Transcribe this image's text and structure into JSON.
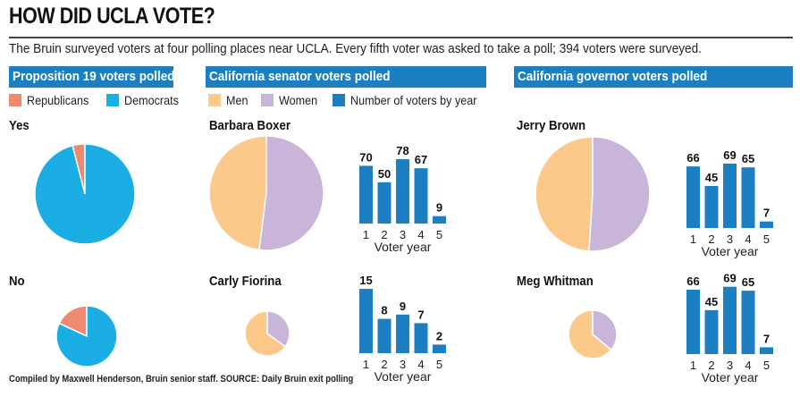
{
  "header": {
    "title": "HOW DID UCLA VOTE?",
    "subtitle": "The Bruin surveyed voters at four polling places near UCLA. Every fifth voter was asked to take a poll; 394 voters were surveyed."
  },
  "sections": {
    "prop19": "Proposition 19 voters polled",
    "senator": "California senator voters polled",
    "governor": "California governor voters polled"
  },
  "legend": {
    "republicans": "Republicans",
    "democrats": "Democrats",
    "men": "Men",
    "women": "Women",
    "voters_by_year": "Number of voters by year"
  },
  "colors": {
    "republicans": "#f08a6e",
    "democrats": "#1aaee5",
    "men": "#fcc98a",
    "women": "#c9b4da",
    "bars": "#1b7fc1",
    "section_bar": "#1b7fc1"
  },
  "labels": {
    "yes": "Yes",
    "no": "No",
    "boxer": "Barbara Boxer",
    "fiorina": "Carly Fiorina",
    "brown": "Jerry Brown",
    "whitman": "Meg Whitman"
  },
  "footer": "Compiled by Maxwell Henderson, Bruin senior staff. SOURCE: Daily Bruin exit polling",
  "chart_data": [
    {
      "id": "prop19-yes",
      "type": "pie",
      "title": "Yes",
      "labels": [
        "Republicans",
        "Democrats"
      ],
      "values": [
        4,
        96
      ]
    },
    {
      "id": "prop19-no",
      "type": "pie",
      "title": "No",
      "labels": [
        "Republicans",
        "Democrats"
      ],
      "values": [
        18,
        82
      ]
    },
    {
      "id": "boxer-gender",
      "type": "pie",
      "title": "Barbara Boxer",
      "labels": [
        "Men",
        "Women"
      ],
      "values": [
        48,
        52
      ]
    },
    {
      "id": "fiorina-gender",
      "type": "pie",
      "title": "Carly Fiorina",
      "labels": [
        "Men",
        "Women"
      ],
      "values": [
        65,
        35
      ]
    },
    {
      "id": "brown-gender",
      "type": "pie",
      "title": "Jerry Brown",
      "labels": [
        "Men",
        "Women"
      ],
      "values": [
        49,
        51
      ]
    },
    {
      "id": "whitman-gender",
      "type": "pie",
      "title": "Meg Whitman",
      "labels": [
        "Men",
        "Women"
      ],
      "values": [
        64,
        36
      ]
    },
    {
      "id": "boxer-years",
      "type": "bar",
      "title": "Barbara Boxer",
      "xlabel": "Voter year",
      "categories": [
        "1",
        "2",
        "3",
        "4",
        "5"
      ],
      "values": [
        70,
        50,
        78,
        67,
        9
      ]
    },
    {
      "id": "fiorina-years",
      "type": "bar",
      "title": "Carly Fiorina",
      "xlabel": "Voter year",
      "categories": [
        "1",
        "2",
        "3",
        "4",
        "5"
      ],
      "values": [
        15,
        8,
        9,
        7,
        2
      ]
    },
    {
      "id": "brown-years",
      "type": "bar",
      "title": "Jerry Brown",
      "xlabel": "Voter year",
      "categories": [
        "1",
        "2",
        "3",
        "4",
        "5"
      ],
      "values": [
        66,
        45,
        69,
        65,
        7
      ]
    },
    {
      "id": "whitman-years",
      "type": "bar",
      "title": "Meg Whitman",
      "xlabel": "Voter year",
      "categories": [
        "1",
        "2",
        "3",
        "4",
        "5"
      ],
      "values": [
        66,
        45,
        69,
        65,
        7
      ]
    }
  ]
}
